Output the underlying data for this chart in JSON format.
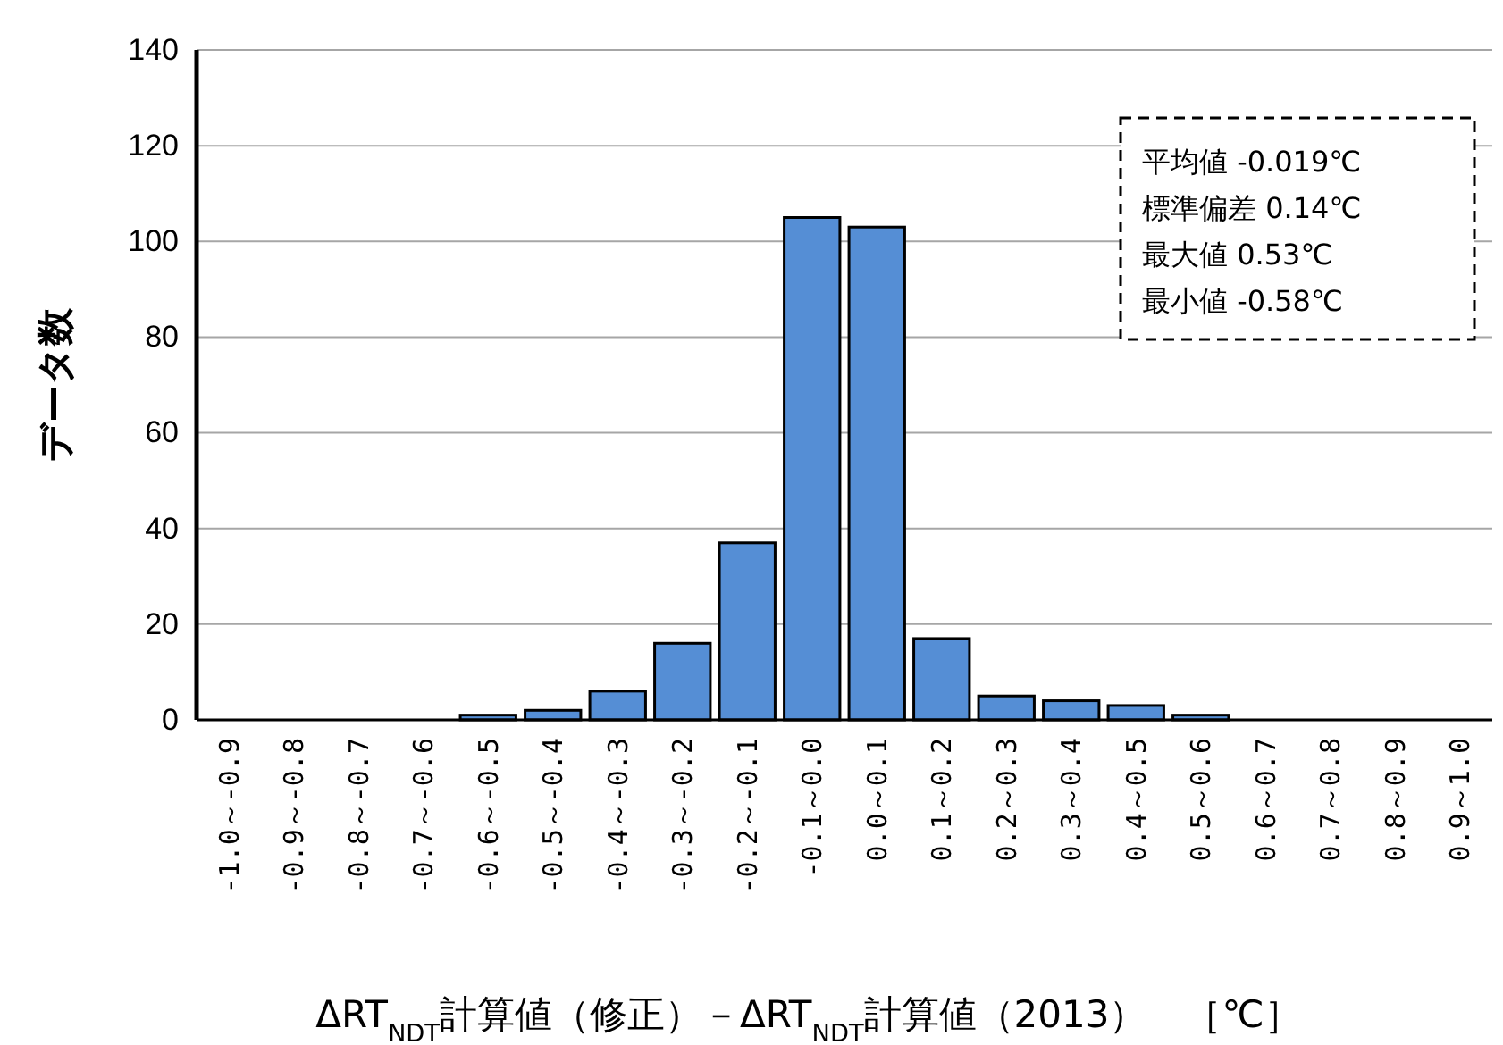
{
  "chart_data": {
    "type": "bar",
    "categories": [
      "-1.0～-0.9",
      "-0.9～-0.8",
      "-0.8～-0.7",
      "-0.7～-0.6",
      "-0.6～-0.5",
      "-0.5～-0.4",
      "-0.4～-0.3",
      "-0.3～-0.2",
      "-0.2～-0.1",
      "-0.1～0.0",
      "0.0～0.1",
      "0.1～0.2",
      "0.2～0.3",
      "0.3～0.4",
      "0.4～0.5",
      "0.5～0.6",
      "0.6～0.7",
      "0.7～0.8",
      "0.8～0.9",
      "0.9～1.0"
    ],
    "values": [
      0,
      0,
      0,
      0,
      1,
      2,
      6,
      16,
      37,
      105,
      103,
      17,
      5,
      4,
      3,
      1,
      0,
      0,
      0,
      0
    ],
    "color": "#558ed5",
    "ylabel": "データ数",
    "xlabel": "ΔRT$_{NDT}$計算値（修正）－ΔRT$_{NDT}$計算値（2013）　［℃］",
    "ylim": [
      0,
      140
    ],
    "yticks": [
      0,
      20,
      40,
      60,
      80,
      100,
      120,
      140
    ],
    "grid": "y",
    "annotations": [
      "平均値 -0.019℃",
      "標準偏差 0.14℃",
      "最大値 0.53℃",
      "最小値 -0.58℃"
    ]
  }
}
